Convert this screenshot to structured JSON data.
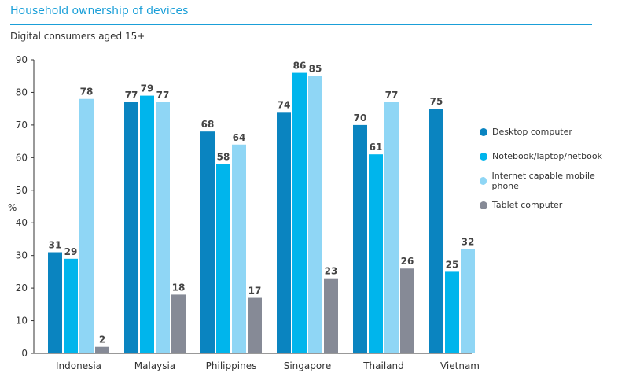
{
  "title": "Household ownership of devices",
  "subtitle": "Digital consumers aged 15+",
  "chart_data": {
    "type": "bar",
    "title": "Household ownership of devices",
    "subtitle": "Digital consumers aged 15+",
    "xlabel": "",
    "ylabel": "%",
    "ylim": [
      0,
      90
    ],
    "yticks": [
      0,
      10,
      20,
      30,
      40,
      50,
      60,
      70,
      80,
      90
    ],
    "grid": false,
    "legend_position": "right",
    "categories": [
      "Indonesia",
      "Malaysia",
      "Philippines",
      "Singapore",
      "Thailand",
      "Vietnam"
    ],
    "series": [
      {
        "name": "Desktop computer",
        "color": "#0a84c0",
        "values": [
          31,
          77,
          68,
          74,
          70,
          75
        ]
      },
      {
        "name": "Notebook/laptop/netbook",
        "color": "#00b5ec",
        "values": [
          29,
          79,
          58,
          86,
          61,
          25
        ]
      },
      {
        "name": "Internet capable mobile phone",
        "color": "#8fd6f5",
        "values": [
          78,
          77,
          64,
          85,
          77,
          32
        ]
      },
      {
        "name": "Tablet computer",
        "color": "#868a96",
        "values": [
          2,
          18,
          17,
          23,
          26,
          null
        ]
      }
    ]
  }
}
